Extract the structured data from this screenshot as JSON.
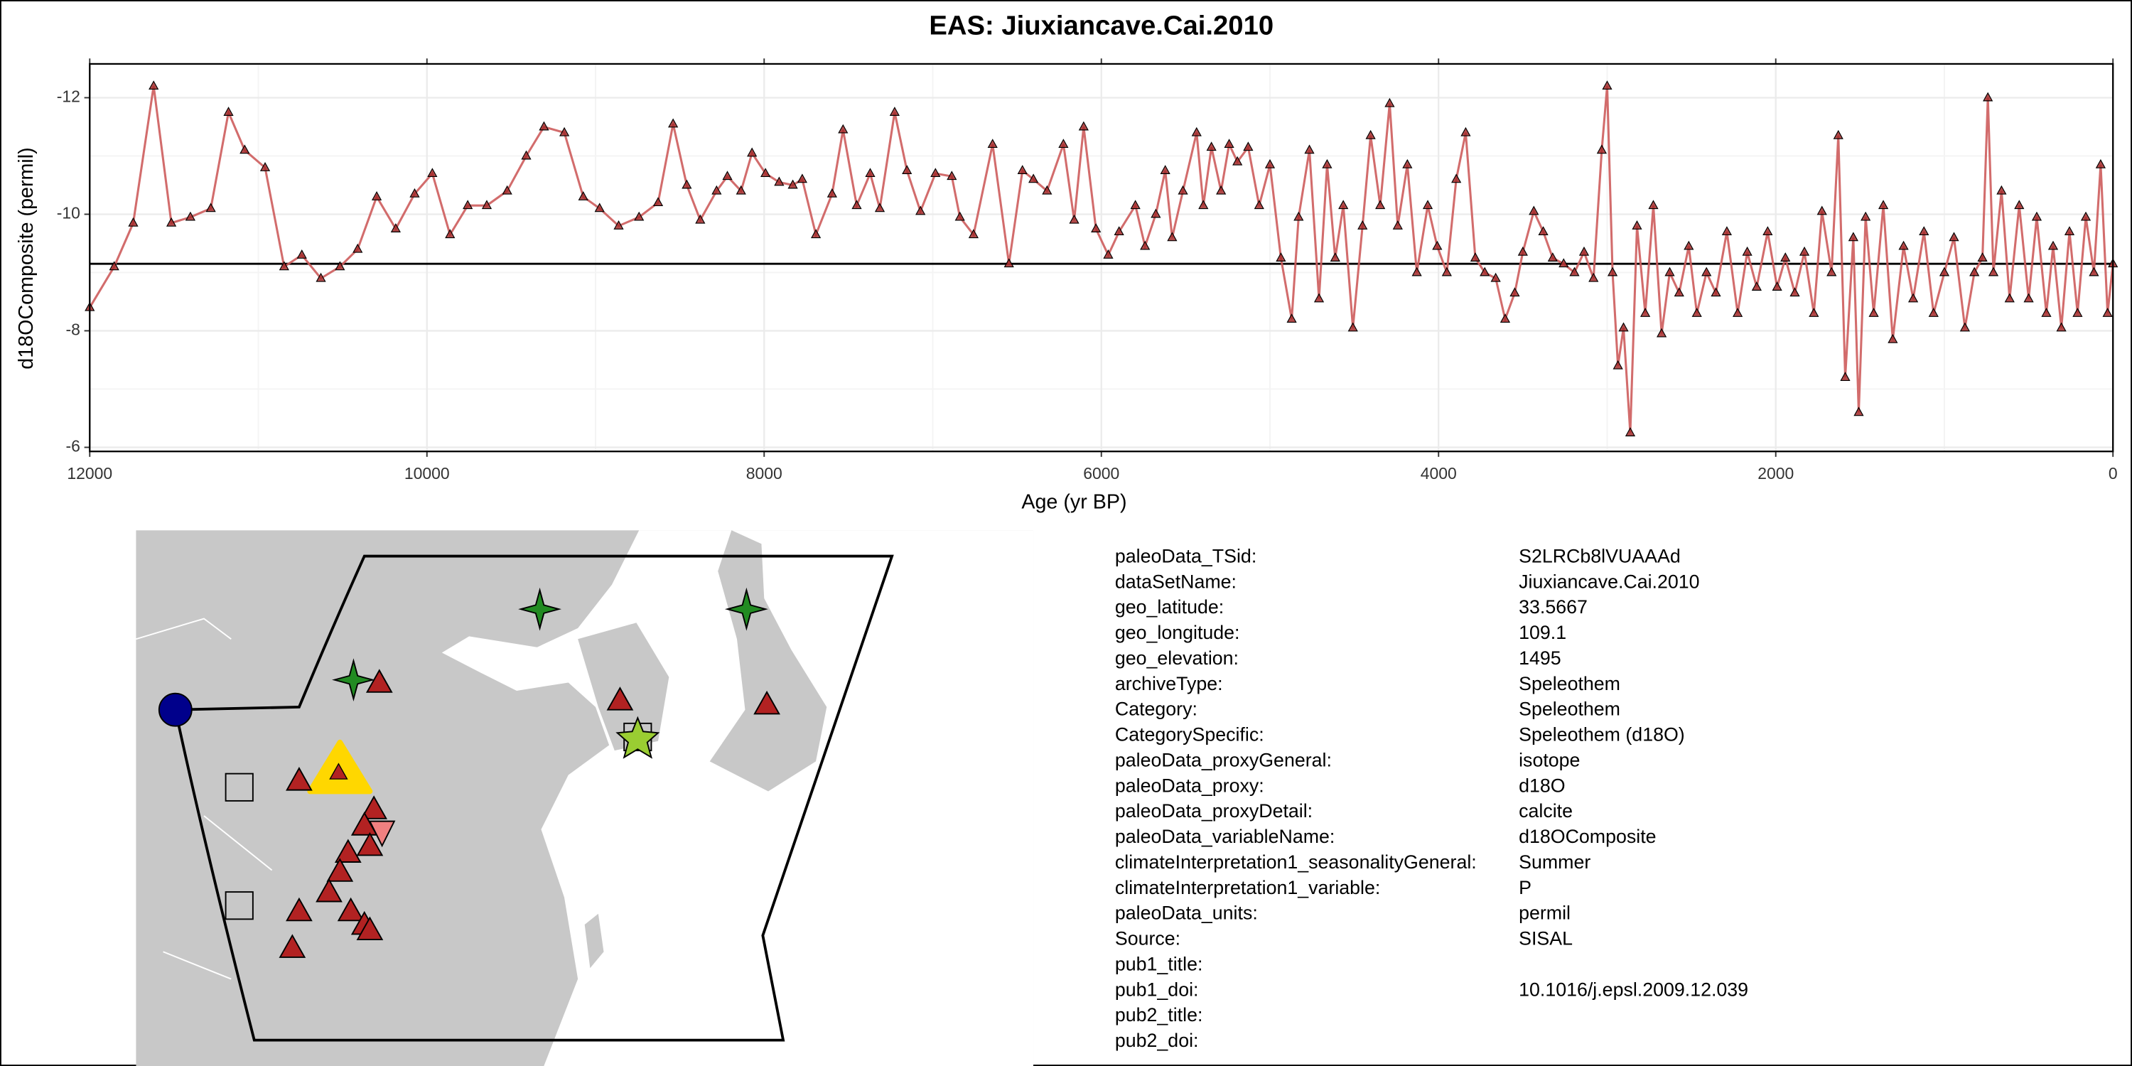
{
  "chart_data": {
    "type": "line",
    "title": "EAS: Jiuxiancave.Cai.2010",
    "x_label": "Age (yr BP)",
    "y_label": "d18OComposite (permil)",
    "x": [
      12000,
      11855,
      11742,
      11621,
      11516,
      11403,
      11282,
      11177,
      11081,
      10960,
      10847,
      10742,
      10629,
      10516,
      10411,
      10298,
      10185,
      10073,
      9968,
      9863,
      9758,
      9645,
      9524,
      9411,
      9306,
      9185,
      9073,
      8976,
      8863,
      8742,
      8629,
      8540,
      8459,
      8379,
      8282,
      8218,
      8137,
      8072,
      7992,
      7911,
      7830,
      7774,
      7693,
      7597,
      7532,
      7451,
      7371,
      7314,
      7226,
      7153,
      7073,
      6984,
      6887,
      6839,
      6758,
      6645,
      6548,
      6468,
      6403,
      6322,
      6225,
      6161,
      6105,
      6032,
      5959,
      5895,
      5798,
      5741,
      5677,
      5621,
      5580,
      5516,
      5435,
      5395,
      5347,
      5290,
      5242,
      5193,
      5129,
      5064,
      5000,
      4935,
      4871,
      4830,
      4766,
      4709,
      4661,
      4613,
      4565,
      4508,
      4451,
      4403,
      4346,
      4290,
      4242,
      4185,
      4129,
      4064,
      4008,
      3951,
      3895,
      3839,
      3782,
      3726,
      3661,
      3605,
      3548,
      3500,
      3435,
      3379,
      3323,
      3258,
      3194,
      3137,
      3081,
      3032,
      3000,
      2968,
      2936,
      2903,
      2863,
      2823,
      2774,
      2726,
      2677,
      2629,
      2573,
      2516,
      2468,
      2411,
      2355,
      2290,
      2226,
      2169,
      2113,
      2048,
      1992,
      1943,
      1887,
      1830,
      1774,
      1726,
      1669,
      1629,
      1588,
      1540,
      1508,
      1467,
      1419,
      1362,
      1306,
      1242,
      1185,
      1121,
      1064,
      1000,
      943,
      878,
      822,
      774,
      742,
      709,
      661,
      613,
      556,
      500,
      452,
      395,
      355,
      306,
      258,
      210,
      161,
      113,
      73,
      32,
      0
    ],
    "values": [
      -8.4,
      -9.1,
      -9.85,
      -12.2,
      -9.85,
      -9.95,
      -10.1,
      -11.75,
      -11.1,
      -10.8,
      -9.1,
      -9.3,
      -8.9,
      -9.1,
      -9.4,
      -10.3,
      -9.75,
      -10.35,
      -10.7,
      -9.65,
      -10.15,
      -10.15,
      -10.4,
      -11.0,
      -11.5,
      -11.4,
      -10.3,
      -10.1,
      -9.8,
      -9.95,
      -10.2,
      -11.55,
      -10.5,
      -9.9,
      -10.4,
      -10.65,
      -10.4,
      -11.05,
      -10.7,
      -10.55,
      -10.5,
      -10.6,
      -9.65,
      -10.35,
      -11.45,
      -10.15,
      -10.7,
      -10.1,
      -11.75,
      -10.75,
      -10.05,
      -10.7,
      -10.65,
      -9.95,
      -9.65,
      -11.2,
      -9.15,
      -10.75,
      -10.6,
      -10.4,
      -11.2,
      -9.9,
      -11.5,
      -9.75,
      -9.3,
      -9.7,
      -10.15,
      -9.45,
      -10.0,
      -10.75,
      -9.6,
      -10.4,
      -11.4,
      -10.15,
      -11.15,
      -10.4,
      -11.2,
      -10.9,
      -11.15,
      -10.15,
      -10.85,
      -9.25,
      -8.2,
      -9.95,
      -11.1,
      -8.55,
      -10.85,
      -9.25,
      -10.15,
      -8.05,
      -9.8,
      -11.35,
      -10.15,
      -11.9,
      -9.8,
      -10.85,
      -9.0,
      -10.15,
      -9.45,
      -9.0,
      -10.6,
      -11.4,
      -9.25,
      -9.0,
      -8.9,
      -8.2,
      -8.65,
      -9.35,
      -10.05,
      -9.7,
      -9.25,
      -9.15,
      -9.0,
      -9.35,
      -8.9,
      -11.1,
      -12.2,
      -9.0,
      -7.4,
      -8.05,
      -6.25,
      -9.8,
      -8.3,
      -10.15,
      -7.95,
      -9.0,
      -8.65,
      -9.45,
      -8.3,
      -9.0,
      -8.65,
      -9.7,
      -8.3,
      -9.35,
      -8.75,
      -9.7,
      -8.75,
      -9.25,
      -8.65,
      -9.35,
      -8.3,
      -10.05,
      -9.0,
      -11.35,
      -7.2,
      -9.6,
      -6.6,
      -9.95,
      -8.3,
      -10.15,
      -7.85,
      -9.45,
      -8.55,
      -9.7,
      -8.3,
      -9.0,
      -9.6,
      -8.05,
      -9.0,
      -9.25,
      -12.0,
      -9.0,
      -10.4,
      -8.55,
      -10.15,
      -8.55,
      -9.95,
      -8.3,
      -9.45,
      -8.05,
      -9.7,
      -8.3,
      -9.95,
      -9.0,
      -10.85,
      -8.3,
      -9.15
    ],
    "color": "#cd5c5c",
    "marker_color": "#a52a2a",
    "hline": -9.15,
    "xlim": [
      12000,
      0
    ],
    "ylim": [
      -5.93,
      -12.58
    ],
    "xticks": [
      12000,
      10000,
      8000,
      6000,
      4000,
      2000,
      0
    ],
    "yticks": [
      -12,
      -10,
      -8,
      -6
    ],
    "grid": true
  },
  "table": {
    "rows": [
      [
        "paleoData_TSid:",
        "S2LRCb8lVUAAAd"
      ],
      [
        "dataSetName:",
        "Jiuxiancave.Cai.2010"
      ],
      [
        "geo_latitude:",
        "33.5667"
      ],
      [
        "geo_longitude:",
        "109.1"
      ],
      [
        "geo_elevation:",
        "1495"
      ],
      [
        "archiveType:",
        "Speleothem"
      ],
      [
        "Category:",
        "Speleothem"
      ],
      [
        "CategorySpecific:",
        "Speleothem (d18O)"
      ],
      [
        "paleoData_proxyGeneral:",
        "isotope"
      ],
      [
        "paleoData_proxy:",
        "d18O"
      ],
      [
        "paleoData_proxyDetail:",
        "calcite"
      ],
      [
        "paleoData_variableName:",
        "d18OComposite"
      ],
      [
        "climateInterpretation1_seasonalityGeneral:",
        "Summer"
      ],
      [
        "climateInterpretation1_variable:",
        "P"
      ],
      [
        "paleoData_units:",
        "permil"
      ],
      [
        "Source:",
        "SISAL"
      ],
      [
        "pub1_title:"
      ],
      [
        "pub1_doi:",
        "10.1016/j.epsl.2009.12.039"
      ],
      [
        "pub2_title:"
      ],
      [
        "pub2_doi:"
      ]
    ]
  }
}
